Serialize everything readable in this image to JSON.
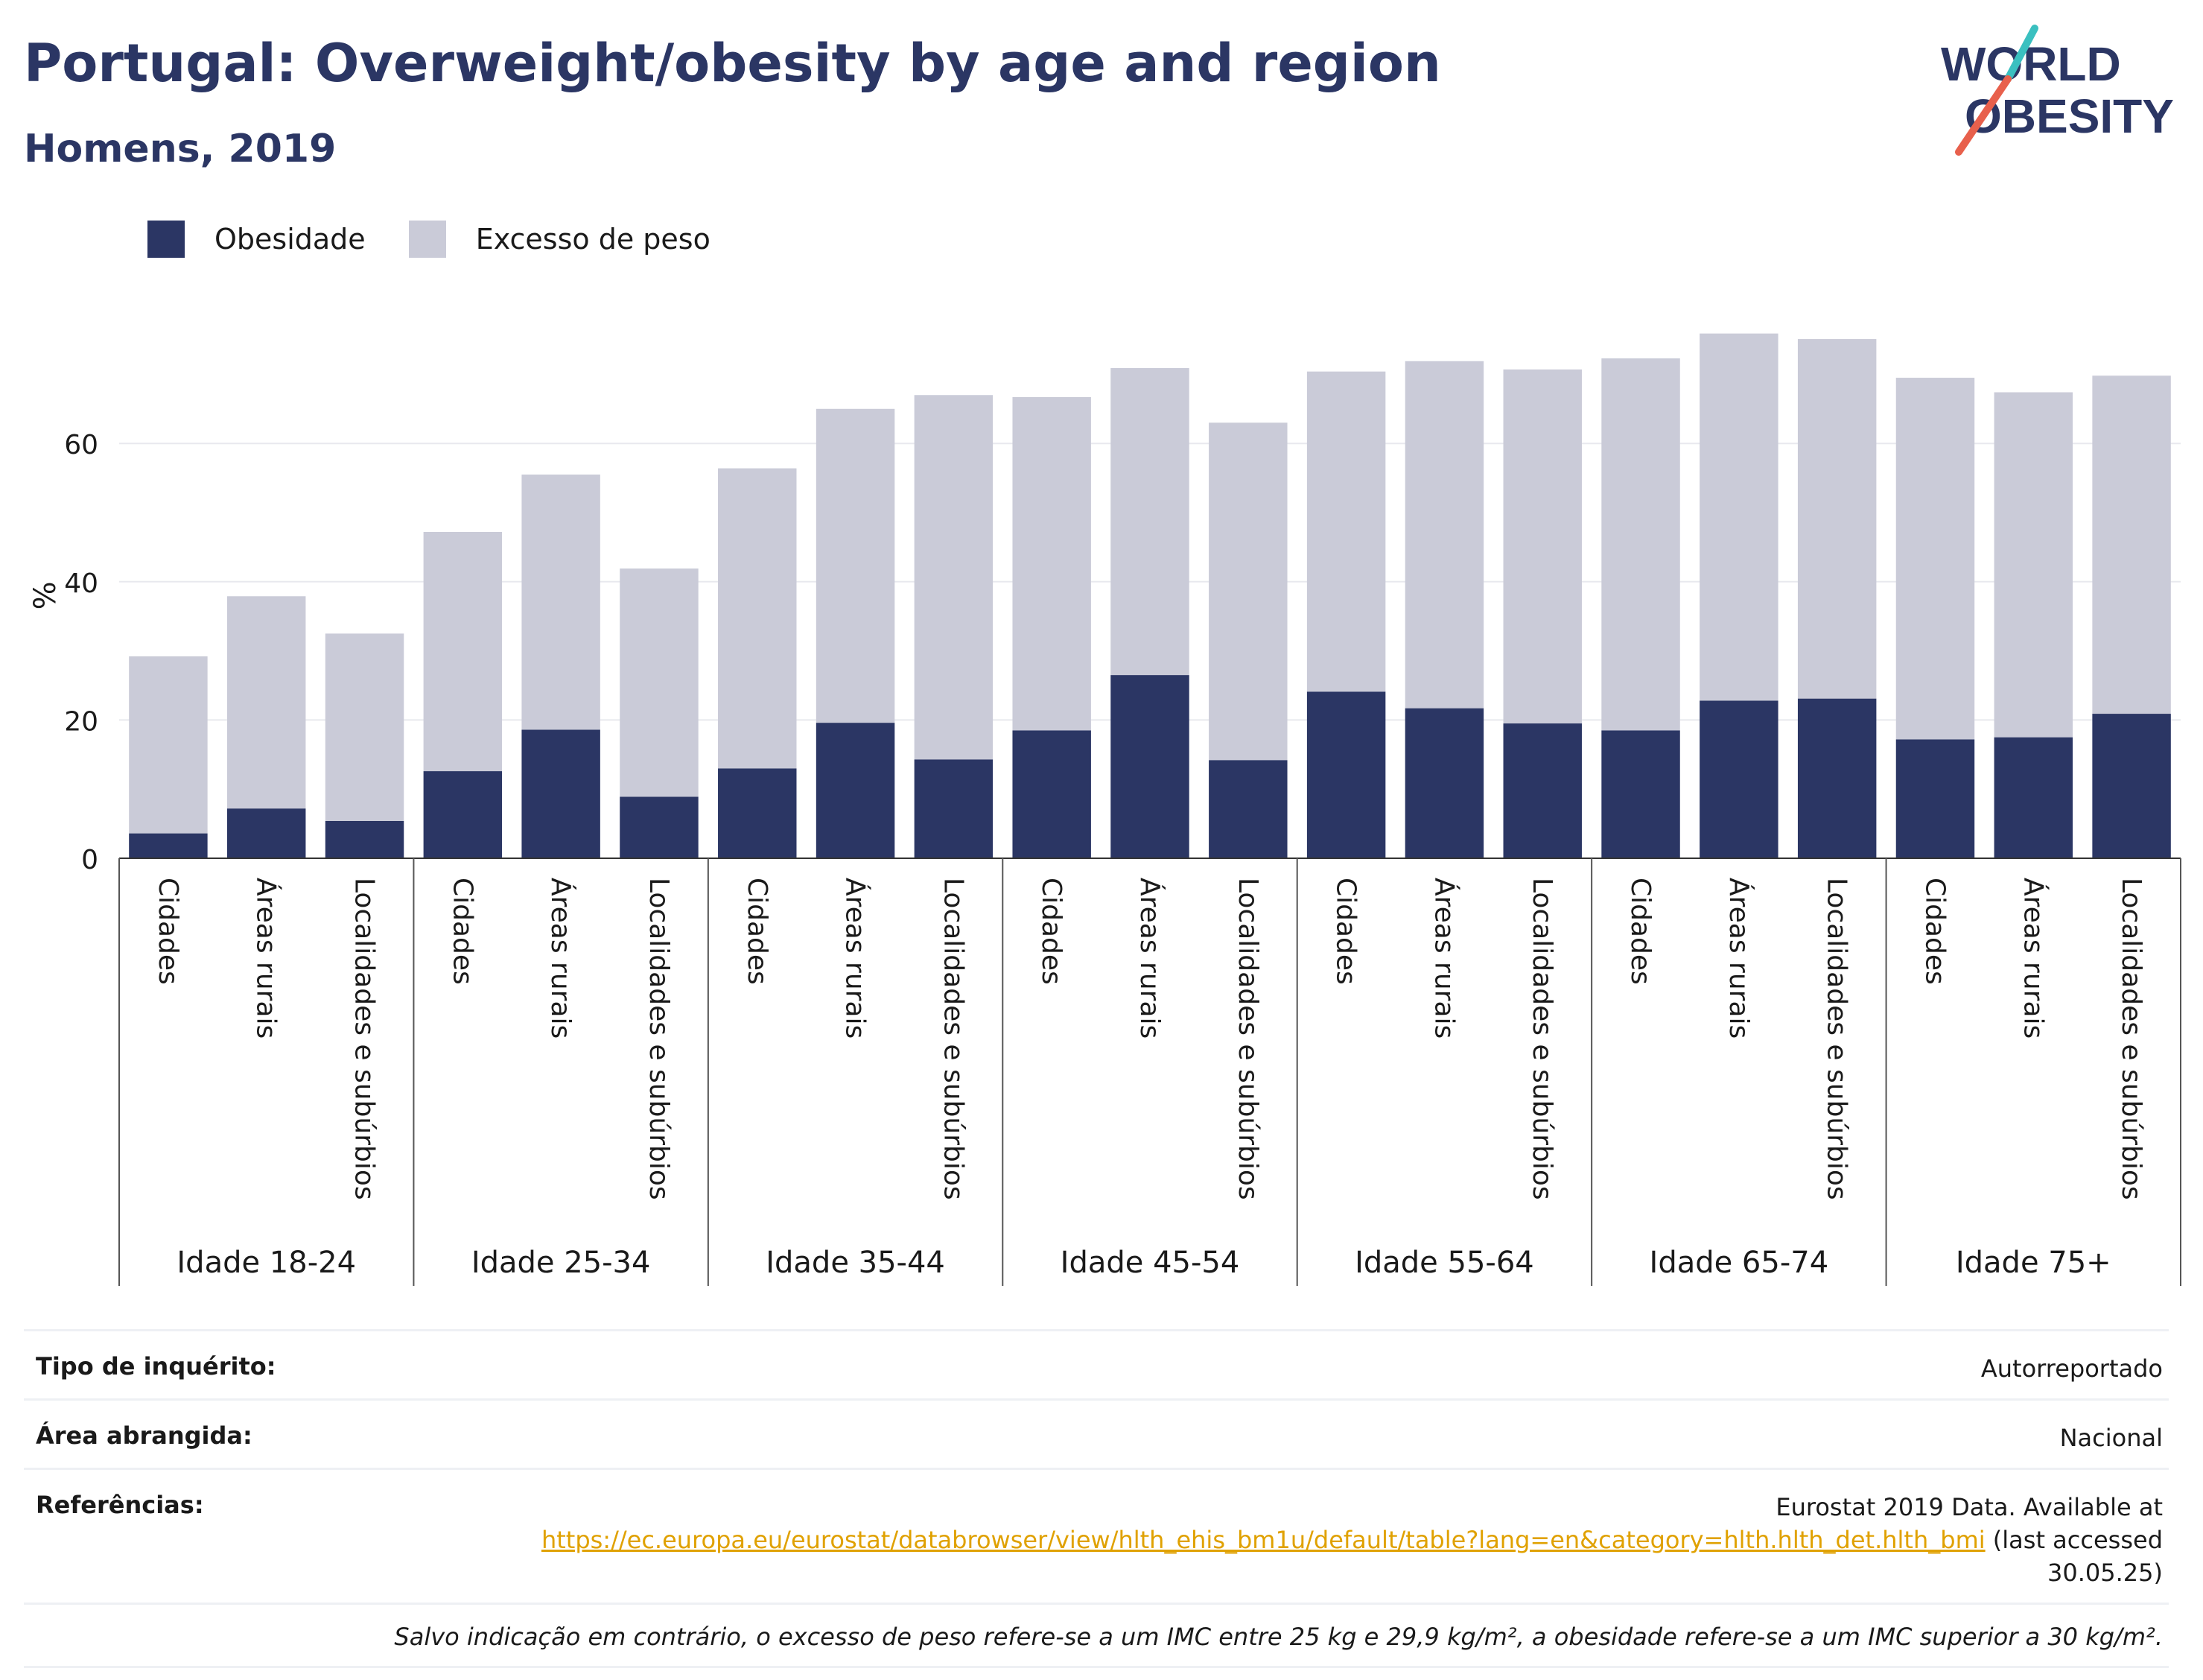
{
  "header": {
    "title": "Portugal: Overweight/obesity by age and region",
    "subtitle": "Homens, 2019"
  },
  "logo": {
    "line1": "WORLD",
    "line2": "OBESITY",
    "colors": {
      "text": "#2b3664",
      "slash_top": "#3ac0c0",
      "slash_bottom": "#e8604c"
    }
  },
  "legend": {
    "items": [
      {
        "label": "Obesidade",
        "color": "#2b3664"
      },
      {
        "label": "Excesso de peso",
        "color": "#cacbd8"
      }
    ]
  },
  "chart_data": {
    "type": "bar",
    "stacked": true,
    "ylabel": "%",
    "ylim": [
      0,
      80
    ],
    "yticks": [
      0,
      20,
      40,
      60
    ],
    "grid": true,
    "legend_position": "top-left",
    "groups": [
      "Idade 18-24",
      "Idade 25-34",
      "Idade 35-44",
      "Idade 45-54",
      "Idade 55-64",
      "Idade 65-74",
      "Idade 75+"
    ],
    "subcategories": [
      "Cidades",
      "Áreas rurais",
      "Localidades e subúrbios"
    ],
    "series": [
      {
        "name": "Obesidade",
        "color": "#2b3664",
        "values": [
          [
            3.6,
            7.2,
            5.4
          ],
          [
            12.6,
            18.6,
            8.9
          ],
          [
            13.0,
            19.6,
            14.3
          ],
          [
            18.5,
            26.5,
            14.2
          ],
          [
            24.1,
            21.7,
            19.5
          ],
          [
            18.5,
            22.8,
            23.1
          ],
          [
            17.2,
            17.5,
            20.9
          ]
        ]
      },
      {
        "name": "Excesso de peso",
        "color": "#cacbd8",
        "values": [
          [
            25.6,
            30.7,
            27.1
          ],
          [
            34.6,
            36.9,
            33.0
          ],
          [
            43.4,
            45.4,
            52.7
          ],
          [
            48.2,
            44.4,
            48.8
          ],
          [
            46.3,
            50.2,
            51.2
          ],
          [
            53.8,
            53.1,
            52.0
          ],
          [
            52.3,
            49.9,
            48.9
          ]
        ]
      }
    ]
  },
  "info": {
    "survey": {
      "label": "Tipo de inquérito:",
      "value": "Autorreportado"
    },
    "area": {
      "label": "Área abrangida:",
      "value": "Nacional"
    },
    "references": {
      "label": "Referências:",
      "text_before": "Eurostat 2019 Data. Available at",
      "link": "https://ec.europa.eu/eurostat/databrowser/view/hlth_ehis_bm1u/default/table?lang=en&category=hlth.hlth_det.hlth_bmi",
      "text_after": "(last accessed",
      "date": "30.05.25)"
    },
    "note": "Salvo indicação em contrário, o excesso de peso refere-se a um IMC entre 25 kg e 29,9 kg/m², a obesidade refere-se a um IMC superior a 30 kg/m²."
  }
}
